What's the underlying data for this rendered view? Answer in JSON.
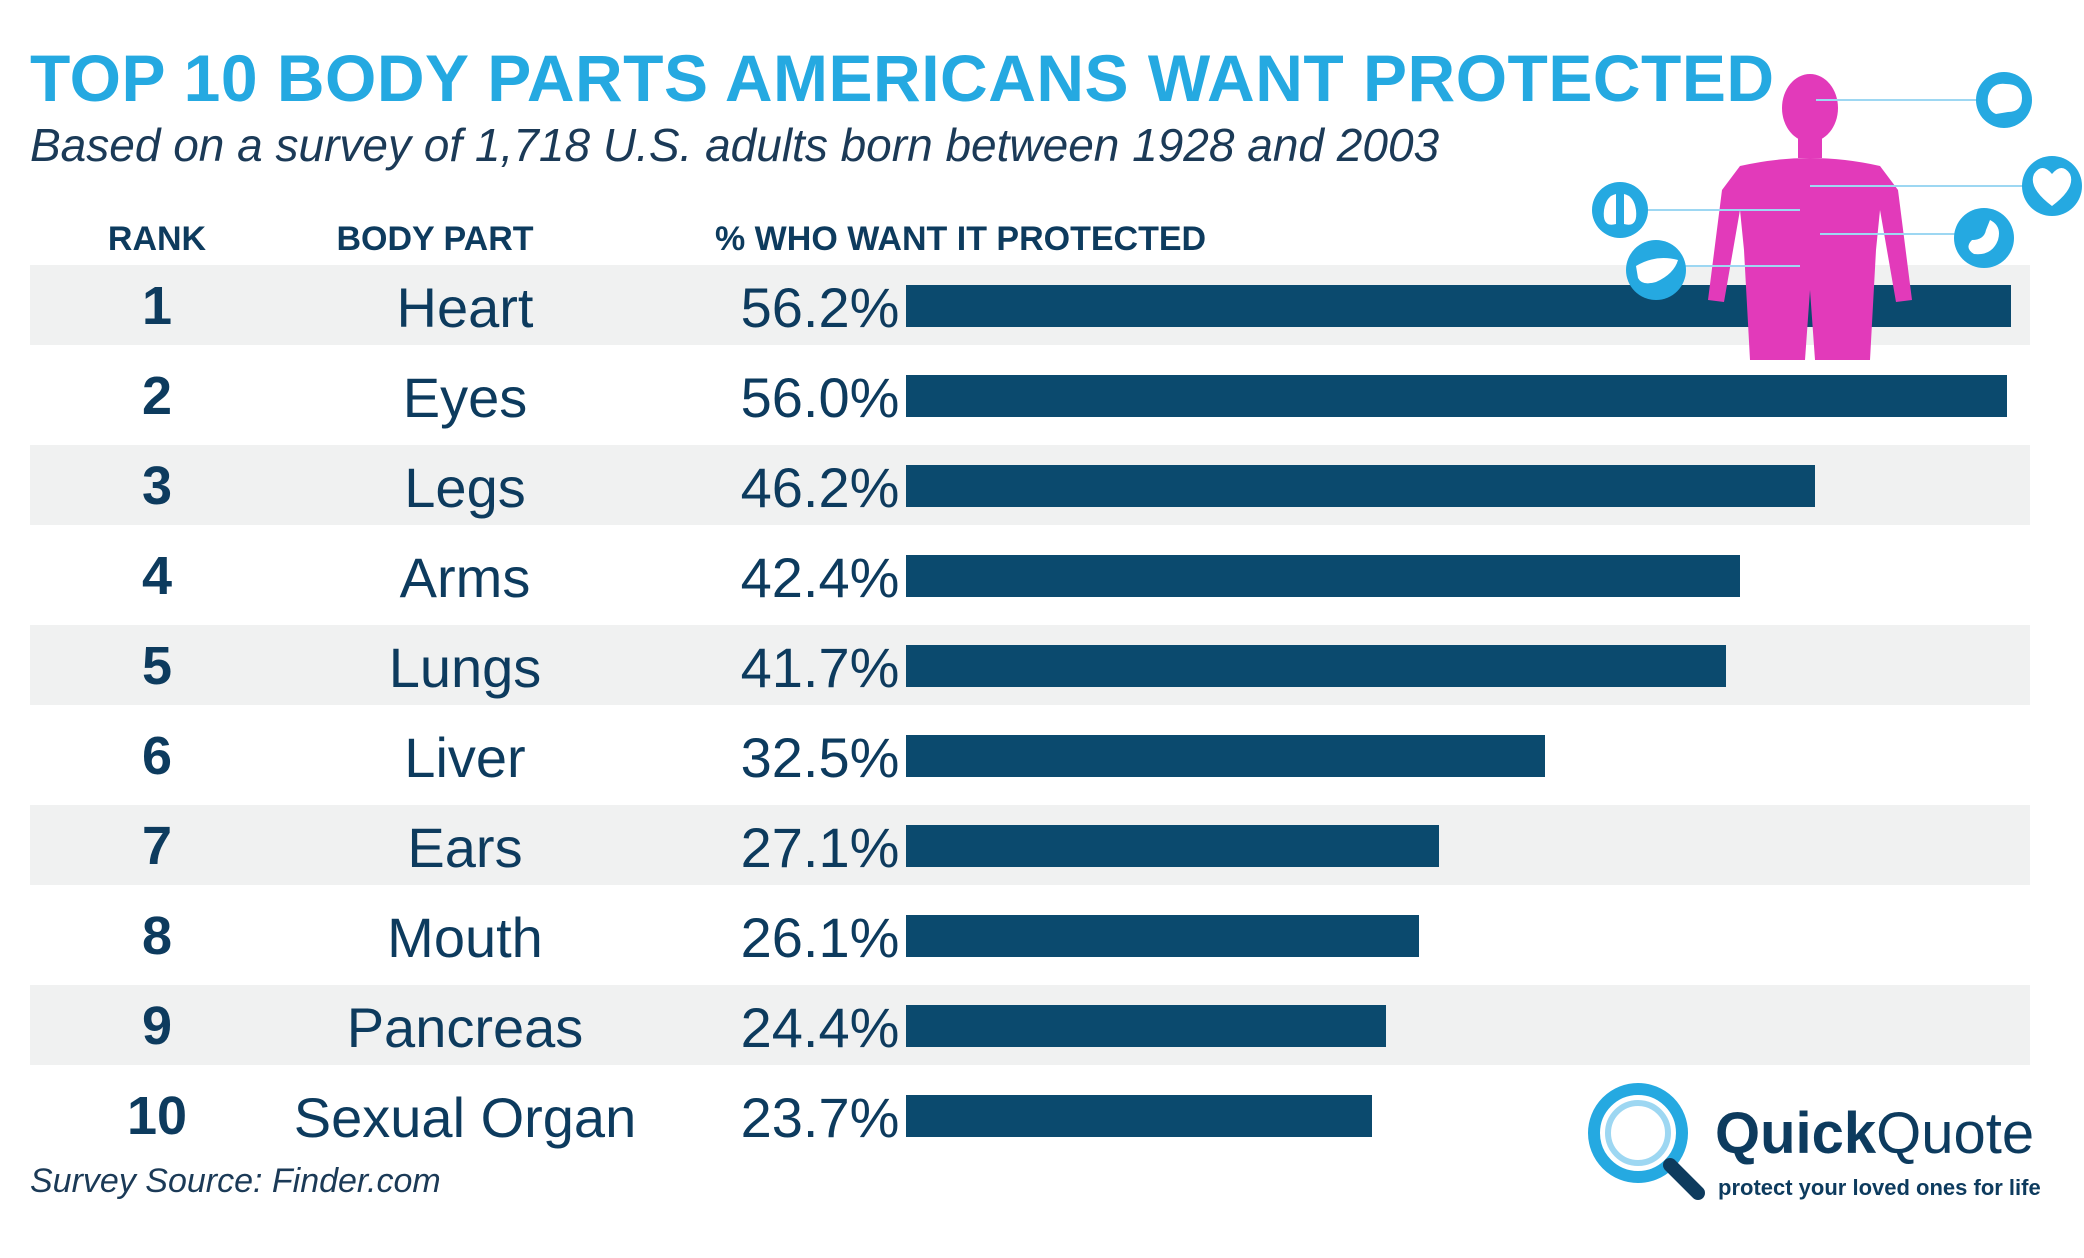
{
  "title": "TOP 10 BODY PARTS AMERICANS WANT PROTECTED",
  "subtitle": "Based on a survey of 1,718 U.S. adults born between 1928 and 2003",
  "columns": {
    "rank": "RANK",
    "body_part": "BODY PART",
    "percent": "% WHO WANT IT PROTECTED"
  },
  "source": "Survey Source: Finder.com",
  "logo": {
    "brand_bold": "Quick",
    "brand_light": "Quote",
    "tagline": "protect your loved ones for life"
  },
  "colors": {
    "title": "#25a9e1",
    "text": "#0d3b5e",
    "bar": "#0b4a6e",
    "row_shade": "#f0f1f1",
    "figure": "#e23aba",
    "icon": "#25a9e1"
  },
  "icons": [
    "brain-icon",
    "heart-icon",
    "lungs-icon",
    "stomach-icon",
    "liver-icon"
  ],
  "chart_data": {
    "type": "bar",
    "orientation": "horizontal",
    "title": "TOP 10 BODY PARTS AMERICANS WANT PROTECTED",
    "subtitle": "Based on a survey of 1,718 U.S. adults born between 1928 and 2003",
    "xlim": [
      0,
      60
    ],
    "grid": false,
    "rows": [
      {
        "rank": "1",
        "part": "Heart",
        "label": "56.2%",
        "value": 56.2
      },
      {
        "rank": "2",
        "part": "Eyes",
        "label": "56.0%",
        "value": 56.0
      },
      {
        "rank": "3",
        "part": "Legs",
        "label": "46.2%",
        "value": 46.2
      },
      {
        "rank": "4",
        "part": "Arms",
        "label": "42.4%",
        "value": 42.4
      },
      {
        "rank": "5",
        "part": "Lungs",
        "label": "41.7%",
        "value": 41.7
      },
      {
        "rank": "6",
        "part": "Liver",
        "label": "32.5%",
        "value": 32.5
      },
      {
        "rank": "7",
        "part": "Ears",
        "label": "27.1%",
        "value": 27.1
      },
      {
        "rank": "8",
        "part": "Mouth",
        "label": "26.1%",
        "value": 26.1
      },
      {
        "rank": "9",
        "part": "Pancreas",
        "label": "24.4%",
        "value": 24.4
      },
      {
        "rank": "10",
        "part": "Sexual Organ",
        "label": "23.7%",
        "value": 23.7
      }
    ]
  }
}
